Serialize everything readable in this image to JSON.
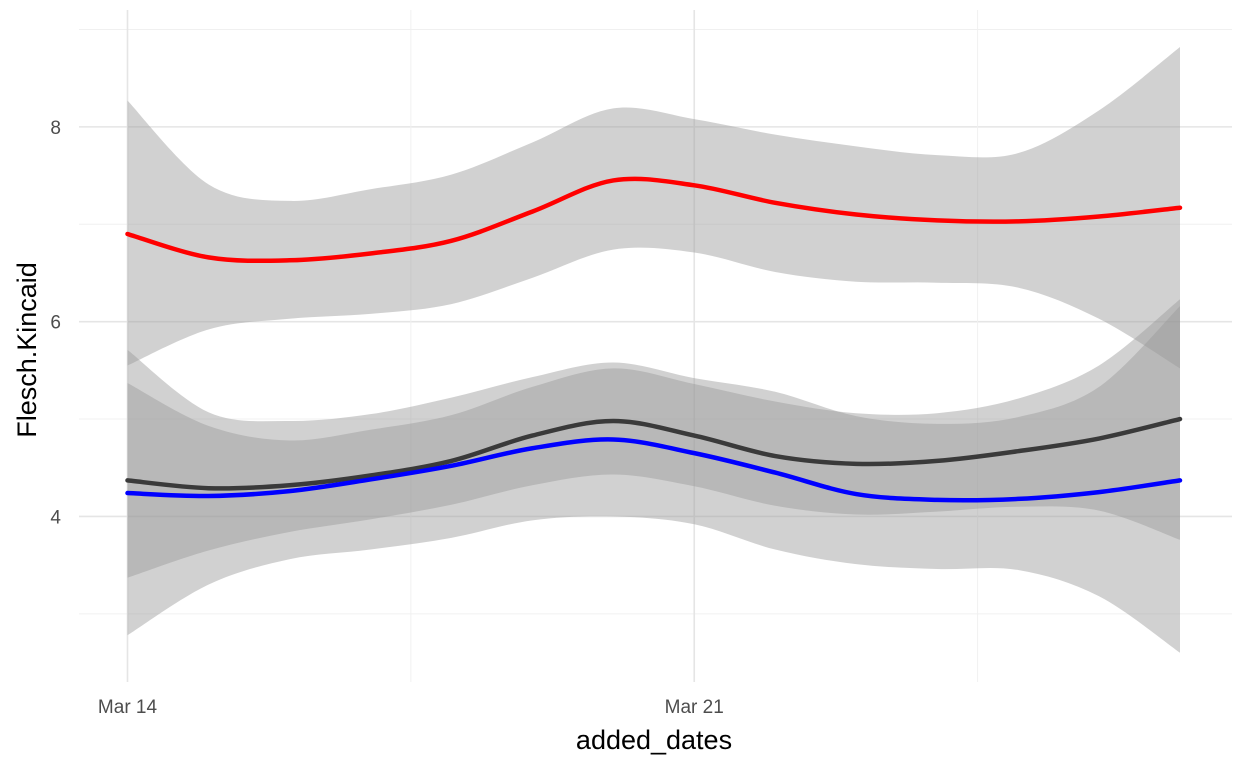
{
  "chart_data": {
    "type": "line",
    "xlabel": "added_dates",
    "ylabel": "Flesch.Kincaid",
    "xlim": [
      "2020-03-14",
      "2020-03-27"
    ],
    "ylim": [
      2.3,
      9.2
    ],
    "x_ticks": [
      "2020-03-14",
      "2020-03-21"
    ],
    "x_tick_labels": [
      "Mar 14",
      "Mar 21"
    ],
    "y_ticks": [
      4,
      6,
      8
    ],
    "y_tick_labels": [
      "4",
      "6",
      "8"
    ],
    "grid": true,
    "legend": "none",
    "band_color": "#999999",
    "x": [
      "2020-03-14",
      "2020-03-15",
      "2020-03-16",
      "2020-03-17",
      "2020-03-18",
      "2020-03-19",
      "2020-03-20",
      "2020-03-21",
      "2020-03-22",
      "2020-03-23",
      "2020-03-24",
      "2020-03-25",
      "2020-03-26",
      "2020-03-27"
    ],
    "series": [
      {
        "color": "#ff0000",
        "values": [
          6.9,
          6.66,
          6.63,
          6.7,
          6.83,
          7.13,
          7.45,
          7.4,
          7.22,
          7.1,
          7.04,
          7.03,
          7.08,
          7.17
        ],
        "lower": [
          5.55,
          5.92,
          6.03,
          6.08,
          6.18,
          6.45,
          6.74,
          6.71,
          6.51,
          6.41,
          6.4,
          6.35,
          6.03,
          5.52
        ],
        "upper": [
          8.27,
          7.41,
          7.24,
          7.36,
          7.51,
          7.84,
          8.19,
          8.08,
          7.92,
          7.8,
          7.71,
          7.73,
          8.17,
          8.82
        ]
      },
      {
        "color": "#3a3a3a",
        "values": [
          4.37,
          4.29,
          4.32,
          4.42,
          4.57,
          4.83,
          4.98,
          4.83,
          4.62,
          4.54,
          4.57,
          4.67,
          4.8,
          5.0
        ],
        "lower": [
          3.37,
          3.65,
          3.84,
          3.97,
          4.12,
          4.32,
          4.43,
          4.31,
          4.11,
          4.02,
          4.05,
          4.1,
          4.06,
          3.76
        ],
        "upper": [
          5.37,
          4.93,
          4.78,
          4.89,
          5.04,
          5.33,
          5.52,
          5.36,
          5.18,
          5.06,
          5.06,
          5.21,
          5.55,
          6.23
        ]
      },
      {
        "color": "#0000ff",
        "values": [
          4.24,
          4.21,
          4.26,
          4.38,
          4.52,
          4.7,
          4.79,
          4.65,
          4.45,
          4.23,
          4.17,
          4.18,
          4.25,
          4.37
        ],
        "lower": [
          2.78,
          3.3,
          3.56,
          3.66,
          3.78,
          3.96,
          4.0,
          3.92,
          3.66,
          3.51,
          3.46,
          3.45,
          3.18,
          2.6
        ],
        "upper": [
          5.71,
          5.07,
          4.98,
          5.05,
          5.22,
          5.43,
          5.58,
          5.42,
          5.28,
          5.03,
          4.95,
          5.02,
          5.33,
          6.16
        ]
      }
    ]
  }
}
